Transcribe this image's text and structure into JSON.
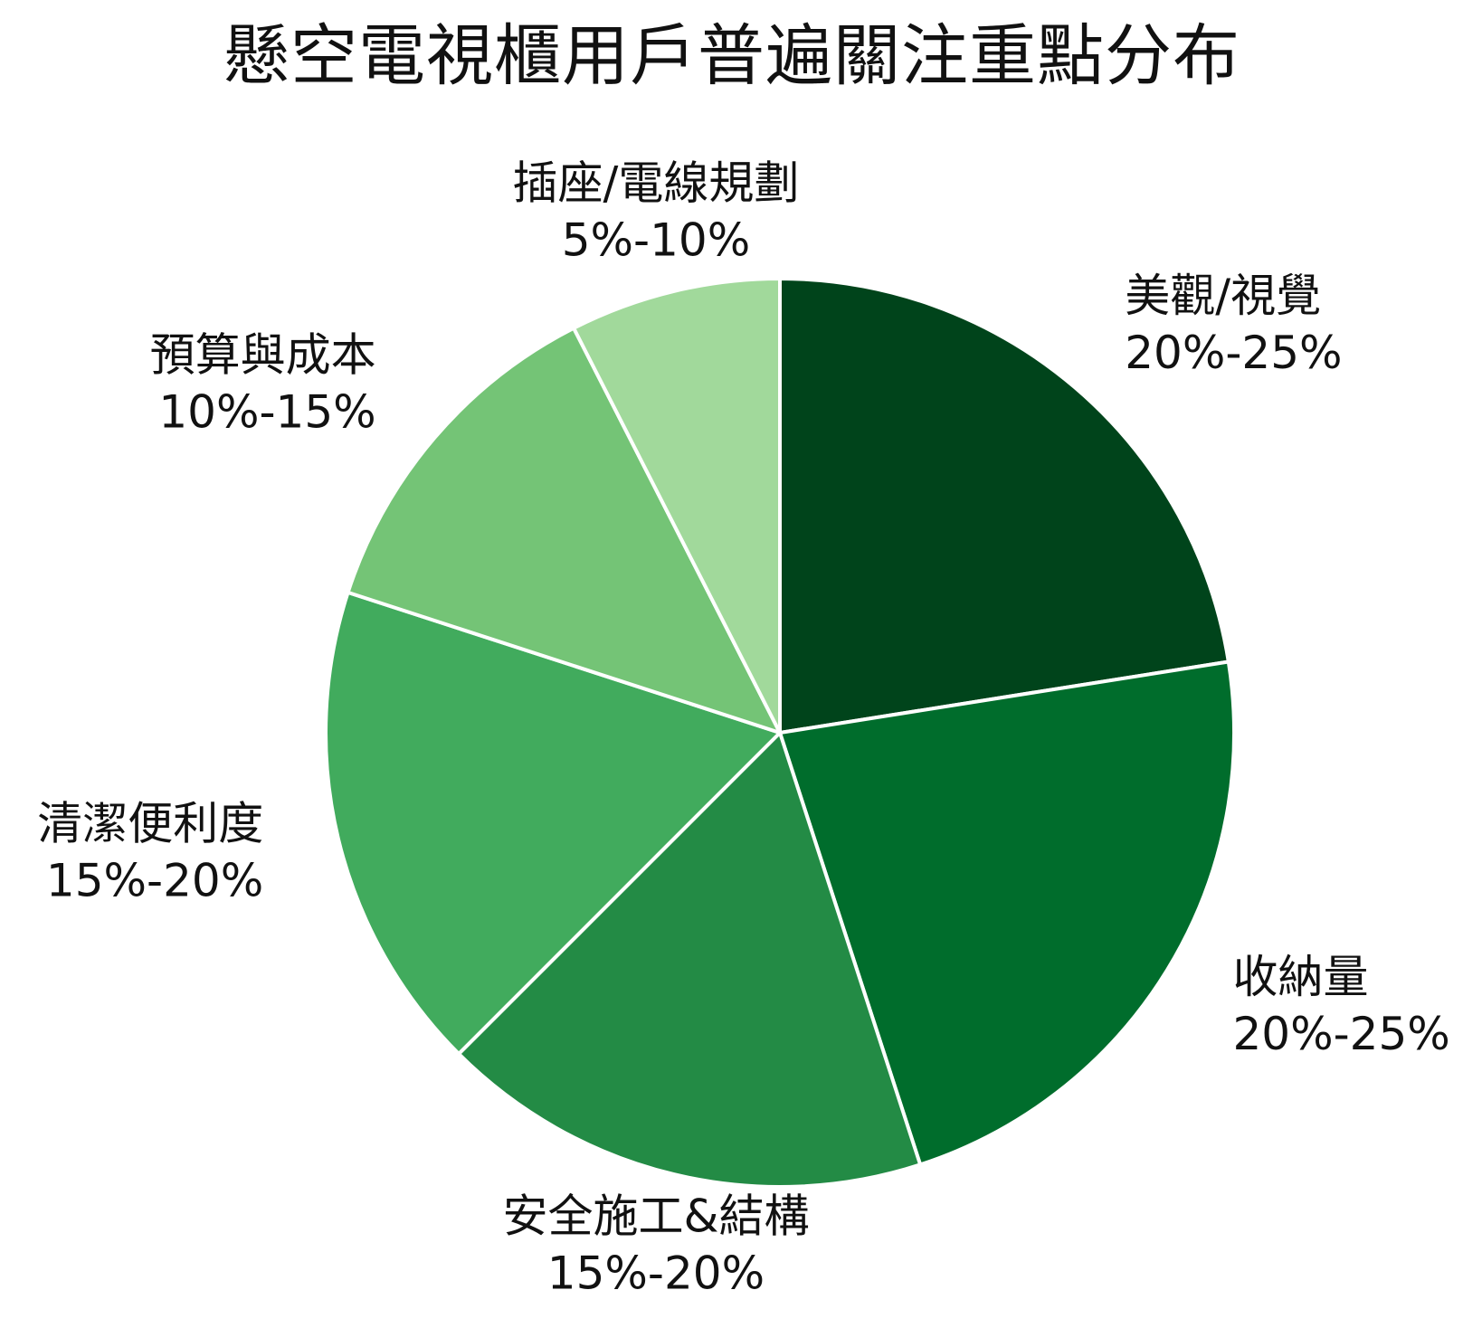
{
  "chart_data": {
    "type": "pie",
    "title": "懸空電視櫃用戶普遍關注重點分布",
    "start_angle_deg": 0,
    "direction": "clockwise",
    "slice_border_color": "#ffffff",
    "slices": [
      {
        "label": "美觀/視覺",
        "range_label": "20%-25%",
        "value": 22.5,
        "color": "#00441b"
      },
      {
        "label": "收納量",
        "range_label": "20%-25%",
        "value": 22.5,
        "color": "#006d2c"
      },
      {
        "label": "安全施工&結構",
        "range_label": "15%-20%",
        "value": 17.5,
        "color": "#238b45"
      },
      {
        "label": "清潔便利度",
        "range_label": "15%-20%",
        "value": 17.5,
        "color": "#41ab5d"
      },
      {
        "label": "預算與成本",
        "range_label": "10%-15%",
        "value": 12.5,
        "color": "#74c476"
      },
      {
        "label": "插座/電線規劃",
        "range_label": "5%-10%",
        "value": 7.5,
        "color": "#a1d99b"
      }
    ]
  }
}
